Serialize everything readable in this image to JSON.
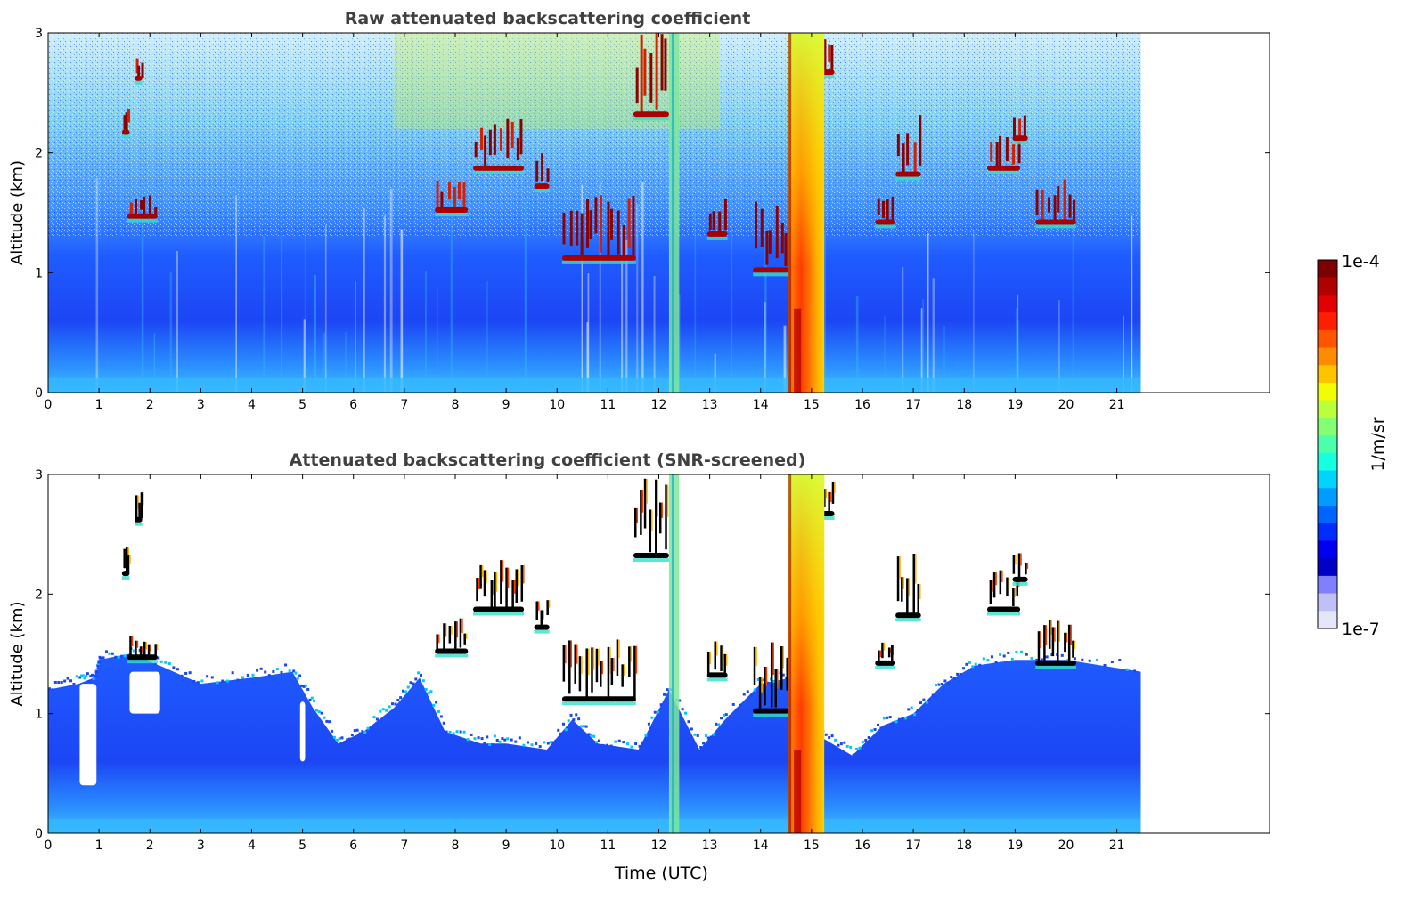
{
  "chart_data": [
    {
      "type": "heatmap",
      "title": "Raw attenuated backscattering coefficient",
      "xlabel": "",
      "ylabel": "Altitude (km)",
      "xlim": [
        0,
        24
      ],
      "ylim": [
        0,
        3
      ],
      "x_ticks": [
        "0",
        "1",
        "2",
        "3",
        "4",
        "5",
        "6",
        "7",
        "8",
        "9",
        "10",
        "11",
        "12",
        "13",
        "14",
        "15",
        "16",
        "17",
        "18",
        "19",
        "20",
        "21"
      ],
      "y_ticks": [
        "0",
        "1",
        "2",
        "3"
      ],
      "data_time_range": [
        0,
        21.47
      ],
      "features": {
        "boundary_layer_top_km": 1.15,
        "clouds": [
          {
            "t": [
              1.45,
              1.6
            ],
            "alt": [
              2.15,
              2.4
            ]
          },
          {
            "t": [
              1.7,
              1.85
            ],
            "alt": [
              2.6,
              2.85
            ]
          },
          {
            "t": [
              1.55,
              2.15
            ],
            "alt": [
              1.45,
              1.65
            ]
          },
          {
            "t": [
              7.6,
              8.25
            ],
            "alt": [
              1.5,
              1.8
            ]
          },
          {
            "t": [
              8.35,
              9.35
            ],
            "alt": [
              1.85,
              2.3
            ]
          },
          {
            "t": [
              9.55,
              9.85
            ],
            "alt": [
              1.7,
              2.0
            ]
          },
          {
            "t": [
              10.1,
              11.55
            ],
            "alt": [
              1.1,
              1.65
            ]
          },
          {
            "t": [
              11.5,
              12.2
            ],
            "alt": [
              2.3,
              3.0
            ]
          },
          {
            "t": [
              12.95,
              13.35
            ],
            "alt": [
              1.3,
              1.65
            ]
          },
          {
            "t": [
              13.85,
              14.55
            ],
            "alt": [
              1.0,
              1.6
            ]
          },
          {
            "t": [
              15.2,
              15.45
            ],
            "alt": [
              2.65,
              2.95
            ]
          },
          {
            "t": [
              16.25,
              16.65
            ],
            "alt": [
              1.4,
              1.65
            ]
          },
          {
            "t": [
              16.65,
              17.15
            ],
            "alt": [
              1.8,
              2.35
            ]
          },
          {
            "t": [
              18.45,
              19.1
            ],
            "alt": [
              1.85,
              2.2
            ]
          },
          {
            "t": [
              18.95,
              19.25
            ],
            "alt": [
              2.1,
              2.4
            ]
          },
          {
            "t": [
              19.4,
              20.2
            ],
            "alt": [
              1.4,
              1.8
            ]
          }
        ],
        "precipitation_column": {
          "t": [
            14.55,
            15.25
          ],
          "alt": [
            0,
            3
          ]
        },
        "narrow_column": {
          "t": [
            12.2,
            12.4
          ],
          "alt": [
            0,
            3
          ]
        }
      }
    },
    {
      "type": "heatmap",
      "title": "Attenuated backscattering coefficient (SNR-screened)",
      "xlabel": "Time (UTC)",
      "ylabel": "Altitude (km)",
      "xlim": [
        0,
        24
      ],
      "ylim": [
        0,
        3
      ],
      "x_ticks": [
        "0",
        "1",
        "2",
        "3",
        "4",
        "5",
        "6",
        "7",
        "8",
        "9",
        "10",
        "11",
        "12",
        "13",
        "14",
        "15",
        "16",
        "17",
        "18",
        "19",
        "20",
        "21"
      ],
      "y_ticks": [
        "0",
        "1",
        "2",
        "3"
      ],
      "data_time_range": [
        0,
        21.47
      ],
      "screened_top_km": [
        [
          0,
          1.2
        ],
        [
          0.6,
          1.25
        ],
        [
          0.9,
          1.3
        ],
        [
          1.0,
          1.45
        ],
        [
          1.6,
          1.5
        ],
        [
          2.2,
          1.4
        ],
        [
          3.0,
          1.25
        ],
        [
          4.0,
          1.3
        ],
        [
          4.8,
          1.35
        ],
        [
          5.2,
          1.05
        ],
        [
          5.7,
          0.75
        ],
        [
          6.2,
          0.85
        ],
        [
          6.8,
          1.05
        ],
        [
          7.3,
          1.3
        ],
        [
          7.8,
          0.85
        ],
        [
          8.5,
          0.75
        ],
        [
          9.0,
          0.75
        ],
        [
          9.8,
          0.7
        ],
        [
          10.3,
          0.95
        ],
        [
          10.8,
          0.75
        ],
        [
          11.6,
          0.7
        ],
        [
          12.2,
          1.2
        ],
        [
          12.8,
          0.7
        ],
        [
          13.3,
          0.95
        ],
        [
          14.0,
          1.25
        ],
        [
          14.6,
          1.3
        ],
        [
          15.2,
          0.8
        ],
        [
          15.8,
          0.65
        ],
        [
          16.4,
          0.9
        ],
        [
          17.0,
          1.0
        ],
        [
          17.6,
          1.25
        ],
        [
          18.2,
          1.4
        ],
        [
          19.0,
          1.45
        ],
        [
          20.0,
          1.45
        ],
        [
          21.47,
          1.35
        ]
      ],
      "screened_gaps": [
        {
          "t": [
            0.62,
            0.95
          ],
          "alt": [
            0.4,
            1.25
          ]
        },
        {
          "t": [
            1.6,
            2.2
          ],
          "alt": [
            1.0,
            1.35
          ]
        },
        {
          "t": [
            4.95,
            5.05
          ],
          "alt": [
            0.6,
            1.1
          ]
        }
      ]
    }
  ],
  "colorbar": {
    "max_label": "1e-4",
    "min_label": "1e-7",
    "label": "1/m/sr",
    "colors": [
      "#7f0000",
      "#b00000",
      "#e20000",
      "#ff1e00",
      "#ff5500",
      "#ff8c00",
      "#ffc300",
      "#f1fc06",
      "#baff3c",
      "#83ff73",
      "#4cffaa",
      "#16ffe1",
      "#00d4ff",
      "#009cff",
      "#0064ff",
      "#002cff",
      "#0000f1",
      "#0000c6",
      "#8080ff",
      "#c0c0f8",
      "#e6e6fa"
    ]
  }
}
